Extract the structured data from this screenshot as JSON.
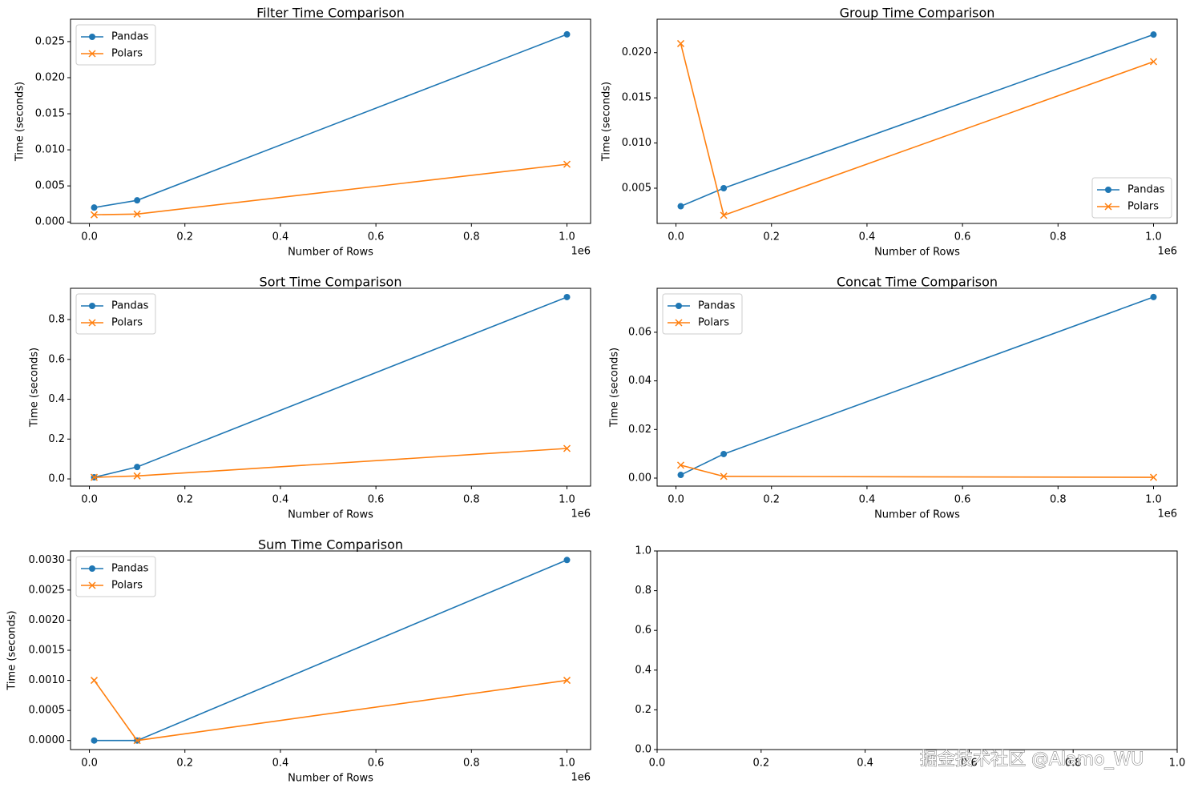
{
  "watermark": "掘金技术社区 @Alamo_WU",
  "chart_data": [
    {
      "type": "line",
      "title": "Filter Time Comparison",
      "x_label": "Number of Rows",
      "y_label": "Time (seconds)",
      "x_offset_label": "1e6",
      "legend": "upper left",
      "x": [
        10000,
        100000,
        1000000
      ],
      "series": [
        {
          "name": "Pandas",
          "color": "#1f77b4",
          "marker": "o",
          "values": [
            0.002,
            0.003,
            0.026
          ]
        },
        {
          "name": "Polars",
          "color": "#ff7f0e",
          "marker": "x",
          "values": [
            0.001,
            0.0011,
            0.008
          ]
        }
      ],
      "xlim": [
        -39500,
        1049500
      ],
      "xticks": [
        {
          "value": 0,
          "label": "0.0"
        },
        {
          "value": 200000,
          "label": "0.2"
        },
        {
          "value": 400000,
          "label": "0.4"
        },
        {
          "value": 600000,
          "label": "0.6"
        },
        {
          "value": 800000,
          "label": "0.8"
        },
        {
          "value": 1000000,
          "label": "1.0"
        }
      ],
      "ylim": [
        -0.0002,
        0.0281
      ],
      "yticks": [
        {
          "value": 0,
          "label": "0.000"
        },
        0.005,
        {
          "value": 0.01,
          "label": "0.010"
        },
        0.015,
        {
          "value": 0.02,
          "label": "0.020"
        },
        0.025
      ]
    },
    {
      "type": "line",
      "title": "Group Time Comparison",
      "x_label": "Number of Rows",
      "y_label": "Time (seconds)",
      "x_offset_label": "1e6",
      "legend": "lower right",
      "x": [
        10000,
        100000,
        1000000
      ],
      "series": [
        {
          "name": "Pandas",
          "color": "#1f77b4",
          "marker": "o",
          "values": [
            0.003,
            0.005,
            0.022
          ]
        },
        {
          "name": "Polars",
          "color": "#ff7f0e",
          "marker": "x",
          "values": [
            0.021,
            0.002,
            0.019
          ]
        }
      ],
      "xlim": [
        -39500,
        1049500
      ],
      "xticks": [
        {
          "value": 0,
          "label": "0.0"
        },
        {
          "value": 200000,
          "label": "0.2"
        },
        {
          "value": 400000,
          "label": "0.4"
        },
        {
          "value": 600000,
          "label": "0.6"
        },
        {
          "value": 800000,
          "label": "0.8"
        },
        {
          "value": 1000000,
          "label": "1.0"
        }
      ],
      "ylim": [
        0.0011,
        0.0237
      ],
      "yticks": [
        0.005,
        {
          "value": 0.01,
          "label": "0.010"
        },
        0.015,
        {
          "value": 0.02,
          "label": "0.020"
        }
      ]
    },
    {
      "type": "line",
      "title": "Sort Time Comparison",
      "x_label": "Number of Rows",
      "y_label": "Time (seconds)",
      "x_offset_label": "1e6",
      "legend": "upper left",
      "x": [
        10000,
        100000,
        1000000
      ],
      "series": [
        {
          "name": "Pandas",
          "color": "#1f77b4",
          "marker": "o",
          "values": [
            0.008,
            0.06,
            0.913
          ]
        },
        {
          "name": "Polars",
          "color": "#ff7f0e",
          "marker": "x",
          "values": [
            0.008,
            0.015,
            0.153
          ]
        }
      ],
      "xlim": [
        -39500,
        1049500
      ],
      "xticks": [
        {
          "value": 0,
          "label": "0.0"
        },
        {
          "value": 200000,
          "label": "0.2"
        },
        {
          "value": 400000,
          "label": "0.4"
        },
        {
          "value": 600000,
          "label": "0.6"
        },
        {
          "value": 800000,
          "label": "0.8"
        },
        {
          "value": 1000000,
          "label": "1.0"
        }
      ],
      "ylim": [
        -0.036,
        0.957
      ],
      "yticks": [
        {
          "value": 0,
          "label": "0.0"
        },
        0.2,
        0.4,
        0.6,
        0.8
      ]
    },
    {
      "type": "line",
      "title": "Concat Time Comparison",
      "x_label": "Number of Rows",
      "y_label": "Time (seconds)",
      "x_offset_label": "1e6",
      "legend": "upper left",
      "x": [
        10000,
        100000,
        1000000
      ],
      "series": [
        {
          "name": "Pandas",
          "color": "#1f77b4",
          "marker": "o",
          "values": [
            0.0013,
            0.0099,
            0.0745
          ]
        },
        {
          "name": "Polars",
          "color": "#ff7f0e",
          "marker": "x",
          "values": [
            0.0053,
            0.0007,
            0.0003
          ]
        }
      ],
      "xlim": [
        -39500,
        1049500
      ],
      "xticks": [
        {
          "value": 0,
          "label": "0.0"
        },
        {
          "value": 200000,
          "label": "0.2"
        },
        {
          "value": 400000,
          "label": "0.4"
        },
        {
          "value": 600000,
          "label": "0.6"
        },
        {
          "value": 800000,
          "label": "0.8"
        },
        {
          "value": 1000000,
          "label": "1.0"
        }
      ],
      "ylim": [
        -0.0033,
        0.0781
      ],
      "yticks": [
        {
          "value": 0,
          "label": "0.00"
        },
        0.02,
        0.04,
        0.06
      ]
    },
    {
      "type": "line",
      "title": "Sum Time Comparison",
      "x_label": "Number of Rows",
      "y_label": "Time (seconds)",
      "x_offset_label": "1e6",
      "legend": "upper left",
      "x": [
        10000,
        100000,
        1000000
      ],
      "series": [
        {
          "name": "Pandas",
          "color": "#1f77b4",
          "marker": "o",
          "values": [
            0,
            0,
            0.003
          ]
        },
        {
          "name": "Polars",
          "color": "#ff7f0e",
          "marker": "x",
          "values": [
            0.001,
            0,
            0.001
          ]
        }
      ],
      "xlim": [
        -39500,
        1049500
      ],
      "xticks": [
        {
          "value": 0,
          "label": "0.0"
        },
        {
          "value": 200000,
          "label": "0.2"
        },
        {
          "value": 400000,
          "label": "0.4"
        },
        {
          "value": 600000,
          "label": "0.6"
        },
        {
          "value": 800000,
          "label": "0.8"
        },
        {
          "value": 1000000,
          "label": "1.0"
        }
      ],
      "ylim": [
        -0.00015,
        0.00315
      ],
      "yticks": [
        {
          "value": 0,
          "label": "0.0000"
        },
        0.0005,
        {
          "value": 0.001,
          "label": "0.0010"
        },
        0.0015,
        {
          "value": 0.002,
          "label": "0.0020"
        },
        0.0025,
        {
          "value": 0.003,
          "label": "0.0030"
        }
      ]
    },
    {
      "type": "line",
      "x": [],
      "series": [],
      "xlim": [
        0,
        1
      ],
      "xticks": [
        {
          "value": 0,
          "label": "0.0"
        },
        0.2,
        0.4,
        0.6,
        0.8,
        {
          "value": 1,
          "label": "1.0"
        }
      ],
      "ylim": [
        0,
        1
      ],
      "yticks": [
        {
          "value": 0,
          "label": "0.0"
        },
        0.2,
        0.4,
        0.6,
        0.8,
        {
          "value": 1,
          "label": "1.0"
        }
      ]
    }
  ]
}
